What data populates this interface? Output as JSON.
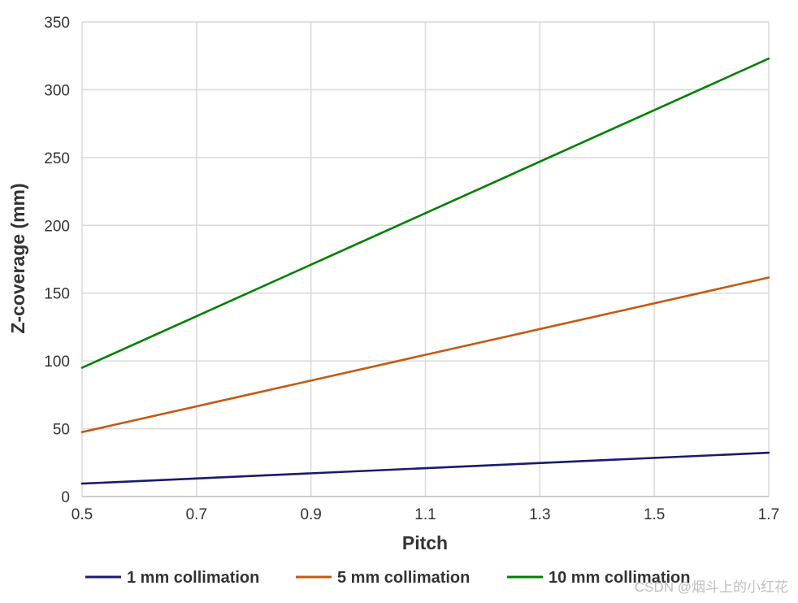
{
  "chart_data": {
    "type": "line",
    "xlabel": "Pitch",
    "ylabel": "Z-coverage (mm)",
    "xlim": [
      0.5,
      1.7
    ],
    "ylim": [
      0,
      350
    ],
    "xticks": [
      "0.5",
      "0.7",
      "0.9",
      "1.1",
      "1.3",
      "1.5",
      "1.7"
    ],
    "yticks": [
      "0",
      "50",
      "100",
      "150",
      "200",
      "250",
      "300",
      "350"
    ],
    "grid": true,
    "legend_position": "bottom",
    "series": [
      {
        "name": "1 mm collimation",
        "color": "#1a1a6e",
        "x": [
          0.5,
          1.7
        ],
        "y": [
          9.5,
          32.3
        ]
      },
      {
        "name": "5 mm collimation",
        "color": "#c55a11",
        "x": [
          0.5,
          1.7
        ],
        "y": [
          47.5,
          161.5
        ]
      },
      {
        "name": "10 mm collimation",
        "color": "#008000",
        "x": [
          0.5,
          1.7
        ],
        "y": [
          95,
          323
        ]
      }
    ]
  },
  "watermark": "CSDN @烟斗上的小红花"
}
